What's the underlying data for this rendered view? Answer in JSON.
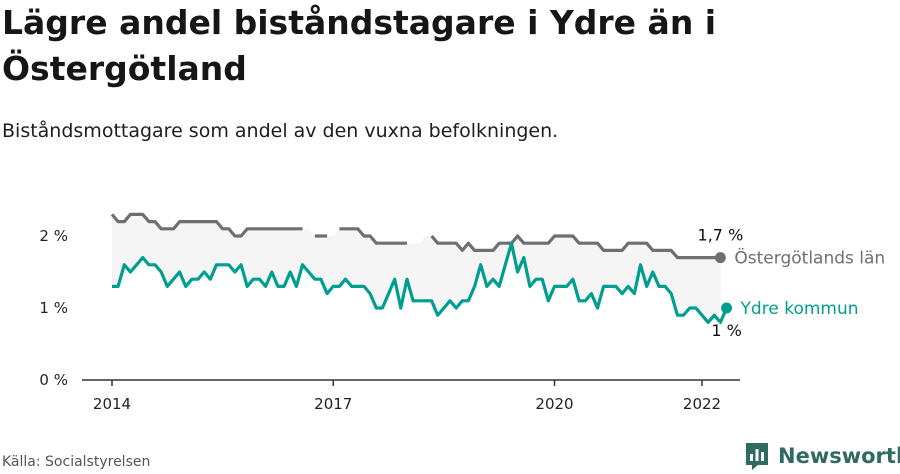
{
  "title": "Lägre andel biståndstagare i Ydre än i Östergötland",
  "subtitle": "Biståndsmottagare som andel av den vuxna befolkningen.",
  "source": "Källa: Socialstyrelsen",
  "brand": "Newsworthy",
  "colors": {
    "lan": "#6e6e73",
    "kommun": "#009e8f",
    "band": "#f5f5f5",
    "axis": "#333333",
    "brand": "#2f6a63"
  },
  "chart_data": {
    "type": "line",
    "title": "Lägre andel biståndstagare i Ydre än i Östergötland",
    "subtitle": "Biståndsmottagare som andel av den vuxna befolkningen.",
    "xlabel": "",
    "ylabel": "",
    "xlim": [
      2014.0,
      2022.3
    ],
    "ylim": [
      0,
      2.5
    ],
    "x_ticks": [
      2014,
      2017,
      2020,
      2022
    ],
    "x_tick_labels": [
      "2014",
      "2017",
      "2020",
      "2022"
    ],
    "y_ticks": [
      0,
      1,
      2
    ],
    "y_tick_labels": [
      "0 %",
      "1 %",
      "2 %"
    ],
    "grid": false,
    "legend": "direct labels at line ends",
    "x_start": 2014.0,
    "x_step": 0.08333,
    "series": [
      {
        "name": "Östergötlands län",
        "end_label": "1,7 %",
        "values": [
          2.3,
          2.2,
          2.2,
          2.3,
          2.3,
          2.3,
          2.2,
          2.2,
          2.1,
          2.1,
          2.1,
          2.2,
          2.2,
          2.2,
          2.2,
          2.2,
          2.2,
          2.2,
          2.1,
          2.1,
          2.0,
          2.0,
          2.1,
          2.1,
          2.1,
          2.1,
          2.1,
          2.1,
          2.1,
          2.1,
          2.1,
          2.1,
          null,
          2.0,
          2.0,
          2.0,
          null,
          2.1,
          2.1,
          2.1,
          2.1,
          2.0,
          2.0,
          1.9,
          1.9,
          1.9,
          1.9,
          1.9,
          1.9,
          null,
          null,
          null,
          2.0,
          1.9,
          1.9,
          1.9,
          1.9,
          1.8,
          1.9,
          1.8,
          1.8,
          1.8,
          1.8,
          1.9,
          1.9,
          1.9,
          2.0,
          1.9,
          1.9,
          1.9,
          1.9,
          1.9,
          2.0,
          2.0,
          2.0,
          2.0,
          1.9,
          1.9,
          1.9,
          1.9,
          1.8,
          1.8,
          1.8,
          1.8,
          1.9,
          1.9,
          1.9,
          1.9,
          1.8,
          1.8,
          1.8,
          1.8,
          1.7,
          1.7,
          1.7,
          1.7,
          1.7,
          1.7,
          1.7,
          1.7
        ]
      },
      {
        "name": "Ydre kommun",
        "end_label": "1 %",
        "values": [
          1.3,
          1.3,
          1.6,
          1.5,
          1.6,
          1.7,
          1.6,
          1.6,
          1.5,
          1.3,
          1.4,
          1.5,
          1.3,
          1.4,
          1.4,
          1.5,
          1.4,
          1.6,
          1.6,
          1.6,
          1.5,
          1.6,
          1.3,
          1.4,
          1.4,
          1.3,
          1.5,
          1.3,
          1.3,
          1.5,
          1.3,
          1.6,
          1.5,
          1.4,
          1.4,
          1.2,
          1.3,
          1.3,
          1.4,
          1.3,
          1.3,
          1.3,
          1.2,
          1.0,
          1.0,
          1.2,
          1.4,
          1.0,
          1.4,
          1.1,
          1.1,
          1.1,
          1.1,
          0.9,
          1.0,
          1.1,
          1.0,
          1.1,
          1.1,
          1.3,
          1.6,
          1.3,
          1.4,
          1.3,
          1.6,
          1.9,
          1.5,
          1.7,
          1.3,
          1.4,
          1.4,
          1.1,
          1.3,
          1.3,
          1.3,
          1.4,
          1.1,
          1.1,
          1.2,
          1.0,
          1.3,
          1.3,
          1.3,
          1.2,
          1.3,
          1.2,
          1.6,
          1.3,
          1.5,
          1.3,
          1.3,
          1.2,
          0.9,
          0.9,
          1.0,
          1.0,
          0.9,
          0.8,
          0.9,
          0.8,
          1.0
        ]
      }
    ]
  }
}
